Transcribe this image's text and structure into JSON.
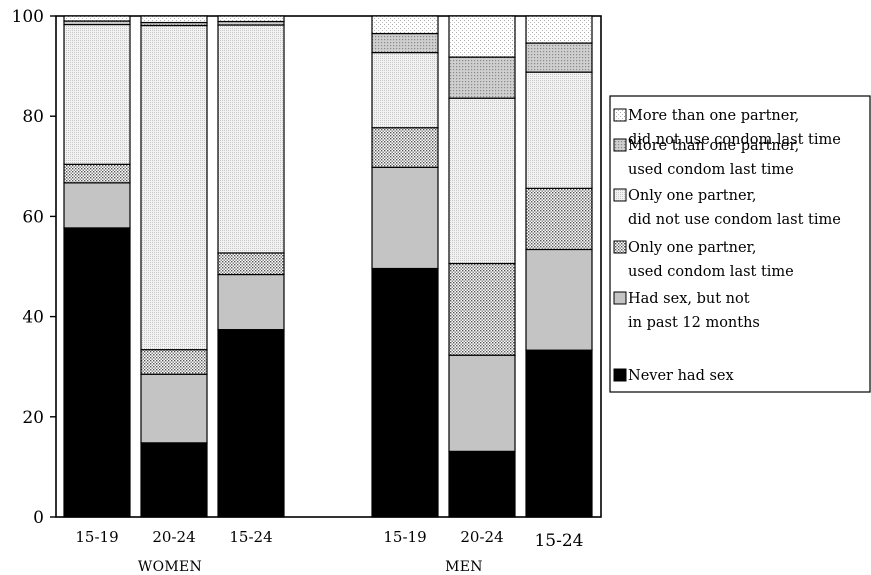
{
  "chart_data": {
    "type": "bar",
    "stacked": true,
    "title": "",
    "xlabel": "",
    "ylabel": "",
    "ylim": [
      0,
      100
    ],
    "yticks": [
      0,
      20,
      40,
      60,
      80,
      100
    ],
    "grid": false,
    "legend_position": "right",
    "groups": [
      {
        "name": "WOMEN",
        "categories": [
          "15-19",
          "20-24",
          "15-24"
        ]
      },
      {
        "name": "MEN",
        "categories": [
          "15-19",
          "20-24",
          "15-24"
        ]
      }
    ],
    "categories": [
      "15-19",
      "20-24",
      "15-24",
      "15-19",
      "20-24",
      "15-24"
    ],
    "series": [
      {
        "name": "Never had sex",
        "fill": "#000000",
        "pattern": "solid",
        "values": [
          57.7,
          14.8,
          37.4,
          49.6,
          13.1,
          33.3
        ]
      },
      {
        "name": "Had sex, but not in past 12 months",
        "fill": "#c4c4c4",
        "pattern": "solid",
        "values": [
          9.0,
          13.7,
          11.0,
          20.2,
          19.2,
          20.1
        ]
      },
      {
        "name": "Only one partner, used condom last time",
        "fill": "#ffffff",
        "pattern": "dots",
        "values": [
          3.7,
          4.9,
          4.3,
          7.9,
          18.3,
          12.2
        ]
      },
      {
        "name": "Only one partner, did not use condom last time",
        "fill": "#e8e8e8",
        "pattern": "fine",
        "values": [
          27.9,
          64.7,
          45.5,
          15.0,
          33.0,
          23.2
        ]
      },
      {
        "name": "More than one partner, used condom last time",
        "fill": "#bdbdbd",
        "pattern": "mesh",
        "values": [
          0.7,
          0.6,
          0.7,
          3.8,
          8.2,
          5.8
        ]
      },
      {
        "name": "More than one partner, did not use condom last time",
        "fill": "#ffffff",
        "pattern": "sparse",
        "values": [
          1.0,
          1.3,
          1.1,
          3.5,
          8.2,
          5.4
        ]
      }
    ]
  },
  "legend": {
    "items": [
      {
        "line1": "More than one partner,",
        "line2": "did not use condom last time",
        "series": 5
      },
      {
        "line1": "More than one partner,",
        "line2": "used condom last time",
        "series": 4
      },
      {
        "line1": "Only one partner,",
        "line2": "did not use condom last time",
        "series": 3
      },
      {
        "line1": "Only one partner,",
        "line2": "used condom last time",
        "series": 2
      },
      {
        "line1": "Had sex, but not",
        "line2": "in past 12 months",
        "series": 1
      },
      {
        "line1": "Never had sex",
        "line2": "",
        "series": 0
      }
    ]
  }
}
